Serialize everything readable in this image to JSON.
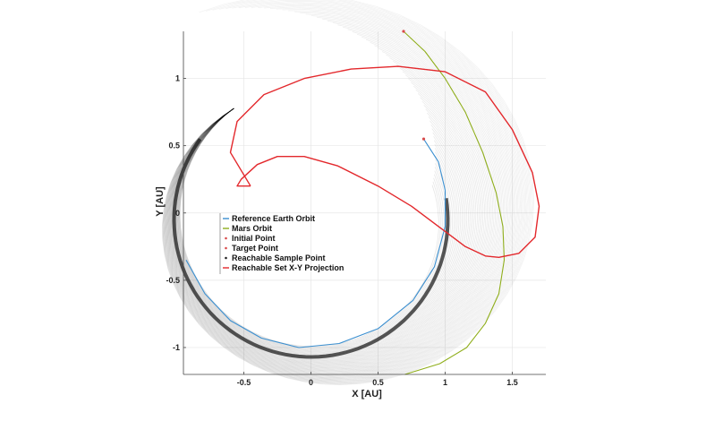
{
  "chart_data": {
    "type": "line",
    "title": "",
    "xlabel": "X [AU]",
    "ylabel": "Y [AU]",
    "xlim": [
      -0.95,
      1.75
    ],
    "ylim": [
      -1.2,
      1.35
    ],
    "xticks": [
      -0.5,
      0,
      0.5,
      1,
      1.5
    ],
    "xtick_labels": [
      "-0.5",
      "0",
      "0.5",
      "1",
      "1.5"
    ],
    "yticks": [
      -1,
      -0.5,
      0,
      0.5,
      1
    ],
    "ytick_labels": [
      "-1",
      "-0.5",
      "0",
      "0.5",
      "1"
    ],
    "grid": true,
    "legend_position": "center-left",
    "series": [
      {
        "name": "Reference Earth Orbit",
        "color": "#3b8fd0",
        "style": "solid",
        "x": [
          -0.93,
          -0.79,
          -0.6,
          -0.37,
          -0.09,
          0.21,
          0.5,
          0.76,
          0.92,
          1.0,
          1.0,
          0.95,
          0.84
        ],
        "y": [
          -0.35,
          -0.6,
          -0.8,
          -0.93,
          -1.0,
          -0.97,
          -0.86,
          -0.65,
          -0.4,
          -0.1,
          0.17,
          0.38,
          0.55
        ]
      },
      {
        "name": "Mars Orbit",
        "color": "#8fae1b",
        "style": "solid",
        "x": [
          0.69,
          0.85,
          1.0,
          1.15,
          1.28,
          1.38,
          1.43,
          1.44,
          1.4,
          1.3,
          1.16,
          0.96,
          0.7
        ],
        "y": [
          1.35,
          1.2,
          1.0,
          0.75,
          0.45,
          0.15,
          -0.1,
          -0.35,
          -0.6,
          -0.82,
          -1.0,
          -1.12,
          -1.2
        ]
      },
      {
        "name": "Initial Point",
        "color": "#d94c4c",
        "style": "marker",
        "x": [
          0.69
        ],
        "y": [
          1.35
        ]
      },
      {
        "name": "Target Point",
        "color": "#d94c4c",
        "style": "marker",
        "x": [
          0.84
        ],
        "y": [
          0.55
        ]
      },
      {
        "name": "Reachable Sample Point",
        "color": "#222222",
        "style": "marker",
        "x": [],
        "y": []
      },
      {
        "name": "Reachable Set X-Y Projection",
        "color": "#e3282c",
        "style": "solid",
        "x": [
          -0.45,
          -0.6,
          -0.55,
          -0.35,
          -0.05,
          0.3,
          0.65,
          1.0,
          1.3,
          1.5,
          1.65,
          1.7,
          1.67,
          1.55,
          1.4,
          1.3,
          1.15,
          0.95,
          0.75,
          0.5,
          0.2,
          -0.05,
          -0.25,
          -0.4,
          -0.52,
          -0.55,
          -0.45
        ],
        "y": [
          0.2,
          0.45,
          0.68,
          0.88,
          1.0,
          1.07,
          1.09,
          1.05,
          0.9,
          0.62,
          0.3,
          0.05,
          -0.18,
          -0.3,
          -0.33,
          -0.32,
          -0.25,
          -0.1,
          0.05,
          0.2,
          0.35,
          0.42,
          0.42,
          0.36,
          0.25,
          0.2,
          0.2
        ]
      }
    ]
  }
}
